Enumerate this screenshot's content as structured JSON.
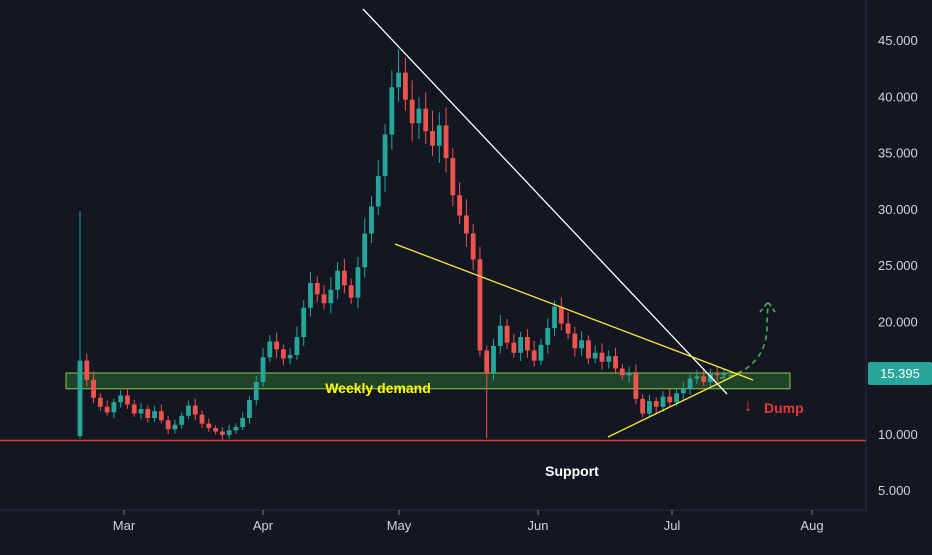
{
  "chart_data": {
    "type": "candlestick",
    "x_ticks": [
      "Mar",
      "Apr",
      "May",
      "Jun",
      "Jul",
      "Aug"
    ],
    "y_ticks": [
      "5.000",
      "10.000",
      "15.000",
      "20.000",
      "25.000",
      "30.000",
      "35.000",
      "40.000",
      "45.000"
    ],
    "ylim": [
      4.0,
      49.0
    ],
    "grid": false,
    "last_price": "15.395",
    "close_series": [
      16.5,
      14.8,
      13.2,
      12.4,
      11.9,
      12.8,
      13.4,
      12.6,
      11.8,
      12.2,
      11.4,
      12.0,
      11.2,
      10.4,
      10.8,
      11.6,
      12.5,
      11.7,
      10.9,
      10.5,
      10.2,
      9.9,
      10.3,
      10.6,
      11.4,
      13.0,
      14.6,
      16.8,
      18.2,
      17.5,
      16.7,
      17.0,
      18.6,
      21.2,
      23.4,
      22.4,
      21.6,
      22.8,
      24.5,
      23.2,
      22.1,
      24.8,
      27.8,
      30.2,
      32.9,
      36.6,
      40.8,
      42.1,
      39.7,
      37.6,
      38.9,
      36.9,
      35.6,
      37.4,
      34.5,
      31.2,
      29.4,
      27.8,
      25.5,
      17.4,
      15.4,
      17.8,
      19.6,
      18.1,
      17.2,
      18.6,
      17.4,
      16.5,
      17.9,
      19.4,
      21.3,
      19.8,
      18.9,
      17.6,
      18.3,
      16.7,
      17.2,
      16.4,
      16.9,
      15.8,
      15.2,
      15.4,
      13.1,
      11.8,
      12.9,
      12.4,
      13.3,
      12.8,
      13.6,
      14.0,
      14.9,
      15.1,
      14.6,
      15.3,
      15.2,
      15.4
    ],
    "annotations": {
      "demand_label": "Weekly demand",
      "support_label": "Support",
      "dump_label": "Dump",
      "dump_arrow": "↓"
    },
    "levels": {
      "weekly_demand_zone": [
        14.0,
        15.4
      ],
      "support_line": 9.4
    },
    "colors": {
      "background": "#131722",
      "up_candle": "#26a69a",
      "down_candle": "#ef5350",
      "demand_fill": "#2e7d32",
      "demand_border": "#8bc34a",
      "demand_text": "#ffff00",
      "support_line": "#e53935",
      "trendline_white": "#ffffff",
      "trendline_yellow": "#ffeb3b",
      "projection": "#4caf50",
      "dump": "#e53935",
      "axis_text": "#d1d4dc",
      "price_badge": "#26a69a"
    }
  }
}
